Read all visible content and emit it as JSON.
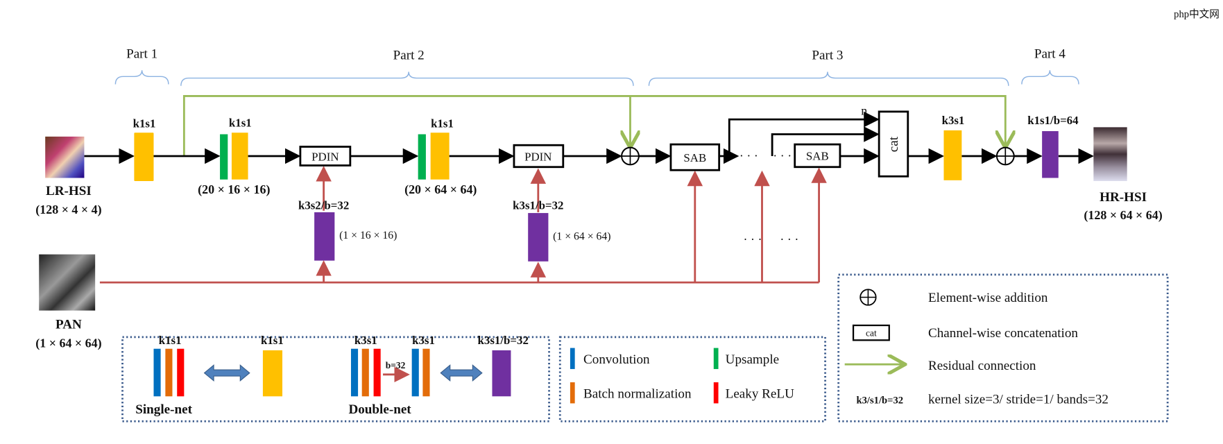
{
  "parts": [
    "Part 1",
    "Part 2",
    "Part 3",
    "Part 4"
  ],
  "inputs": {
    "lr_hsi": {
      "name": "LR-HSI",
      "dims": "(128 × 4 × 4)"
    },
    "pan": {
      "name": "PAN",
      "dims": "(1 × 64 × 64)"
    },
    "hr_hsi": {
      "name": "HR-HSI",
      "dims": "(128 × 64 × 64)"
    }
  },
  "blocks": {
    "conv1": "k1s1",
    "up1": "k1s1",
    "up1_dims": "(20 × 16 × 16)",
    "pdin1": "PDIN",
    "up2": "k1s1",
    "up2_dims": "(20 × 64 × 64)",
    "pdin2": "PDIN",
    "pan_conv1": "k3s2/b=32",
    "pan_conv1_dims": "(1 × 16 × 16)",
    "pan_conv2": "k3s1/b=32",
    "pan_conv2_dims": "(1 × 64 × 64)",
    "sab1": "SAB",
    "sab2": "SAB",
    "ellipsis": "· · ·",
    "n_label": "n",
    "cat": "cat",
    "conv_out": "k3s1",
    "final": "k1s1/b=64"
  },
  "legend_nets": {
    "single_left": "k1s1",
    "single_right": "k1s1",
    "single_name": "Single-net",
    "double_left": "k3s1",
    "double_mid": "k3s1",
    "double_b": "b=32",
    "double_right": "k3s1/b=32",
    "double_name": "Double-net"
  },
  "legend_layers": {
    "convolution": "Convolution",
    "upsample": "Upsample",
    "batch_norm": "Batch normalization",
    "leaky_relu": "Leaky ReLU"
  },
  "legend_symbols": {
    "addition": "Element-wise addition",
    "cat_symbol": "cat",
    "concatenation": "Channel-wise concatenation",
    "residual": "Residual connection",
    "kernel_key": "k3/s1/b=32",
    "kernel_desc": "kernel size=3/ stride=1/ bands=32"
  },
  "watermark": "php中文网",
  "colors": {
    "conv_yellow": "#ffc000",
    "upsample_green": "#00b050",
    "purple": "#7030a0",
    "conv_blue": "#0070c0",
    "bn_orange": "#e36c09",
    "relu_red": "#ff0000",
    "pan_line": "#c0504d",
    "residual_green": "#9bbb59"
  }
}
